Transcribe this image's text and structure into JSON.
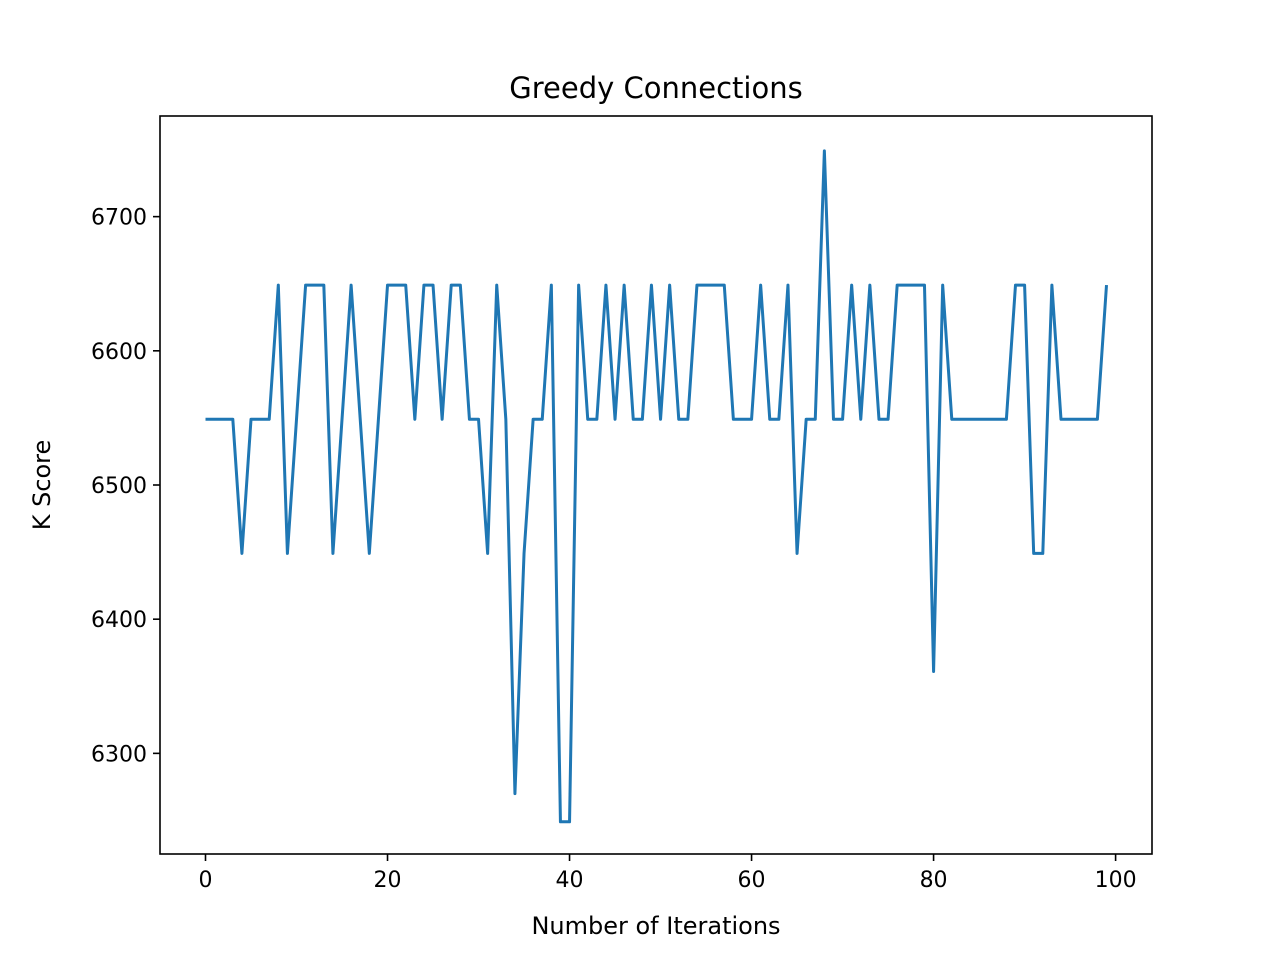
{
  "chart_data": {
    "type": "line",
    "title": "Greedy Connections",
    "xlabel": "Number of Iterations",
    "ylabel": "K Score",
    "xlim": [
      -5,
      104
    ],
    "ylim": [
      6225,
      6775
    ],
    "xticks": [
      0,
      20,
      40,
      60,
      80,
      100
    ],
    "yticks": [
      6300,
      6400,
      6500,
      6600,
      6700
    ],
    "grid": false,
    "series": [
      {
        "color": "#1f77b4",
        "x": [
          0,
          1,
          2,
          3,
          4,
          5,
          6,
          7,
          8,
          9,
          10,
          11,
          12,
          13,
          14,
          15,
          16,
          17,
          18,
          19,
          20,
          21,
          22,
          23,
          24,
          25,
          26,
          27,
          28,
          29,
          30,
          31,
          32,
          33,
          34,
          35,
          36,
          37,
          38,
          39,
          40,
          41,
          42,
          43,
          44,
          45,
          46,
          47,
          48,
          49,
          50,
          51,
          52,
          53,
          54,
          55,
          56,
          57,
          58,
          59,
          60,
          61,
          62,
          63,
          64,
          65,
          66,
          67,
          68,
          69,
          70,
          71,
          72,
          73,
          74,
          75,
          76,
          77,
          78,
          79,
          80,
          81,
          82,
          83,
          84,
          85,
          86,
          87,
          88,
          89,
          90,
          91,
          92,
          93,
          94,
          95,
          96,
          97,
          98,
          99
        ],
        "values": [
          6549,
          6549,
          6549,
          6549,
          6449,
          6549,
          6549,
          6549,
          6649,
          6449,
          6549,
          6649,
          6649,
          6649,
          6449,
          6549,
          6649,
          6549,
          6449,
          6549,
          6649,
          6649,
          6649,
          6549,
          6649,
          6649,
          6549,
          6649,
          6649,
          6549,
          6549,
          6449,
          6649,
          6549,
          6270,
          6449,
          6549,
          6549,
          6649,
          6249,
          6249,
          6649,
          6549,
          6549,
          6649,
          6549,
          6649,
          6549,
          6549,
          6649,
          6549,
          6649,
          6549,
          6549,
          6649,
          6649,
          6649,
          6649,
          6549,
          6549,
          6549,
          6649,
          6549,
          6549,
          6649,
          6449,
          6549,
          6549,
          6749,
          6549,
          6549,
          6649,
          6549,
          6649,
          6549,
          6549,
          6649,
          6649,
          6649,
          6649,
          6361,
          6649,
          6549,
          6549,
          6549,
          6549,
          6549,
          6549,
          6549,
          6649,
          6649,
          6449,
          6449,
          6649,
          6549,
          6549,
          6549,
          6549,
          6549,
          6649
        ]
      }
    ]
  }
}
